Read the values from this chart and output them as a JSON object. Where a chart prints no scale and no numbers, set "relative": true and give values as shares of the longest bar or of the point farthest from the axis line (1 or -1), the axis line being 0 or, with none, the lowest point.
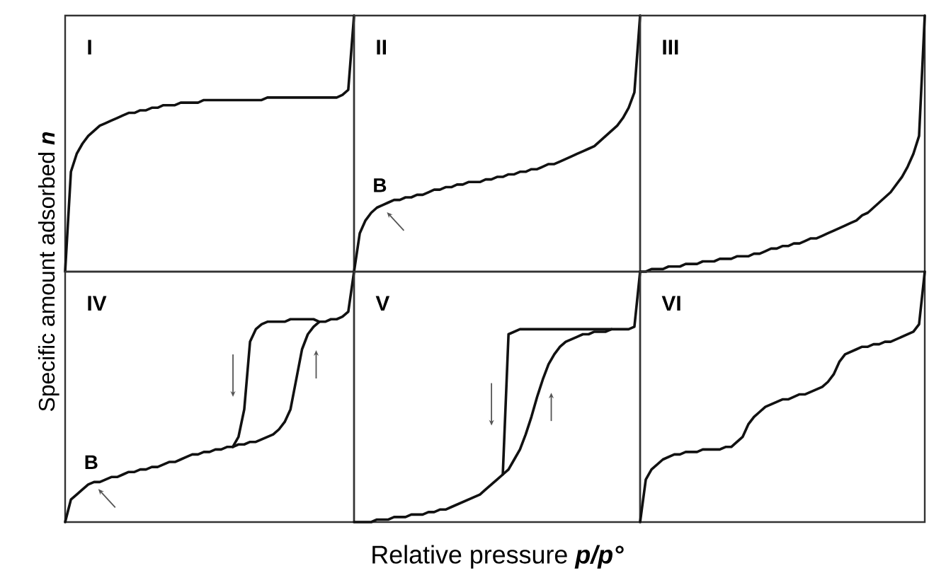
{
  "chart_data": [
    {
      "type": "line",
      "title": "I",
      "ylabel": "Specific amount adsorbed **n**",
      "relative": true,
      "color": "#111111",
      "categories": [
        null,
        null,
        null,
        null,
        null,
        null,
        null,
        null,
        null,
        null,
        null,
        null,
        null,
        null,
        null,
        null,
        null,
        null,
        null,
        null,
        null,
        null,
        null,
        null,
        null,
        null,
        null,
        null,
        null,
        null,
        null,
        null,
        null,
        null,
        null,
        null,
        null,
        null,
        null,
        null,
        null,
        null,
        null,
        null,
        null,
        null,
        null,
        null,
        null,
        null,
        null
      ],
      "values": [
        0,
        0.39,
        0.46,
        0.5,
        0.53,
        0.55,
        0.57,
        0.58,
        0.59,
        0.6,
        0.61,
        0.62,
        0.62,
        0.63,
        0.63,
        0.64,
        0.64,
        0.65,
        0.65,
        0.65,
        0.66,
        0.66,
        0.66,
        0.66,
        0.67,
        0.67,
        0.67,
        0.67,
        0.67,
        0.67,
        0.67,
        0.67,
        0.67,
        0.67,
        0.67,
        0.68,
        0.68,
        0.68,
        0.68,
        0.68,
        0.68,
        0.68,
        0.68,
        0.68,
        0.68,
        0.68,
        0.68,
        0.68,
        0.69,
        0.71,
        1
      ]
    },
    {
      "type": "line",
      "title": "II",
      "relative": true,
      "color": "#111111",
      "annotations": [
        {
          "text": "B",
          "y": 0.26
        }
      ],
      "categories": [
        null,
        null,
        null,
        null,
        null,
        null,
        null,
        null,
        null,
        null,
        null,
        null,
        null,
        null,
        null,
        null,
        null,
        null,
        null,
        null,
        null,
        null,
        null,
        null,
        null,
        null,
        null,
        null,
        null,
        null,
        null,
        null,
        null,
        null,
        null,
        null,
        null,
        null,
        null,
        null,
        null,
        null,
        null,
        null,
        null,
        null,
        null,
        null,
        null,
        null,
        null
      ],
      "values": [
        0,
        0.15,
        0.2,
        0.23,
        0.25,
        0.26,
        0.27,
        0.28,
        0.28,
        0.29,
        0.29,
        0.3,
        0.3,
        0.31,
        0.32,
        0.32,
        0.33,
        0.33,
        0.34,
        0.34,
        0.35,
        0.35,
        0.35,
        0.36,
        0.36,
        0.37,
        0.37,
        0.38,
        0.38,
        0.39,
        0.39,
        0.4,
        0.4,
        0.41,
        0.42,
        0.42,
        0.43,
        0.44,
        0.45,
        0.46,
        0.47,
        0.48,
        0.49,
        0.51,
        0.53,
        0.55,
        0.57,
        0.6,
        0.64,
        0.7,
        1
      ]
    },
    {
      "type": "line",
      "title": "III",
      "relative": true,
      "color": "#111111",
      "categories": [
        null,
        null,
        null,
        null,
        null,
        null,
        null,
        null,
        null,
        null,
        null,
        null,
        null,
        null,
        null,
        null,
        null,
        null,
        null,
        null,
        null,
        null,
        null,
        null,
        null,
        null,
        null,
        null,
        null,
        null,
        null,
        null,
        null,
        null,
        null,
        null,
        null,
        null,
        null,
        null,
        null,
        null,
        null,
        null,
        null,
        null,
        null,
        null,
        null,
        null,
        null
      ],
      "values": [
        0,
        0,
        0.01,
        0.01,
        0.01,
        0.02,
        0.02,
        0.02,
        0.03,
        0.03,
        0.03,
        0.04,
        0.04,
        0.04,
        0.05,
        0.05,
        0.05,
        0.06,
        0.06,
        0.06,
        0.07,
        0.07,
        0.08,
        0.09,
        0.09,
        0.1,
        0.1,
        0.11,
        0.11,
        0.12,
        0.13,
        0.13,
        0.14,
        0.15,
        0.16,
        0.17,
        0.18,
        0.19,
        0.2,
        0.22,
        0.23,
        0.25,
        0.27,
        0.29,
        0.31,
        0.34,
        0.37,
        0.41,
        0.46,
        0.53,
        1
      ]
    },
    {
      "type": "line",
      "title": "IV",
      "relative": true,
      "annotations": [
        {
          "text": "B",
          "y": 0.16
        }
      ],
      "categories": [
        null,
        null,
        null,
        null,
        null,
        null,
        null,
        null,
        null,
        null,
        null,
        null,
        null,
        null,
        null,
        null,
        null,
        null,
        null,
        null,
        null,
        null,
        null,
        null,
        null,
        null,
        null,
        null,
        null,
        null,
        null,
        null,
        null,
        null,
        null,
        null,
        null,
        null,
        null,
        null,
        null,
        null,
        null,
        null,
        null,
        null,
        null,
        null,
        null,
        null,
        null
      ],
      "series": [
        {
          "color": "#111111",
          "values": [
            0,
            0.09,
            0.11,
            0.13,
            0.15,
            0.16,
            0.16,
            0.17,
            0.18,
            0.18,
            0.19,
            0.2,
            0.2,
            0.21,
            0.21,
            0.22,
            0.22,
            0.23,
            0.24,
            0.24,
            0.25,
            0.26,
            0.27,
            0.27,
            0.28,
            0.28,
            0.29,
            0.29,
            0.3,
            0.3,
            0.31,
            0.31,
            0.32,
            0.32,
            0.33,
            0.34,
            0.35,
            0.37,
            0.4,
            0.45,
            0.57,
            0.69,
            0.75,
            0.78,
            0.8,
            0.8,
            0.81,
            0.81,
            0.82,
            0.84,
            1
          ]
        },
        {
          "color": "#111111",
          "values": [
            null,
            null,
            null,
            null,
            null,
            null,
            null,
            null,
            null,
            null,
            null,
            null,
            null,
            null,
            null,
            null,
            null,
            null,
            null,
            null,
            null,
            null,
            null,
            null,
            null,
            null,
            null,
            null,
            null,
            0.3,
            0.34,
            0.45,
            0.72,
            0.77,
            0.79,
            0.8,
            0.8,
            0.8,
            0.8,
            0.81,
            0.81,
            0.81,
            0.81,
            0.81,
            0.8,
            null,
            null,
            null,
            null,
            null,
            null
          ]
        }
      ]
    },
    {
      "type": "line",
      "title": "V",
      "xlabel": "Relative pressure **p/p°**",
      "relative": true,
      "categories": [
        null,
        null,
        null,
        null,
        null,
        null,
        null,
        null,
        null,
        null,
        null,
        null,
        null,
        null,
        null,
        null,
        null,
        null,
        null,
        null,
        null,
        null,
        null,
        null,
        null,
        null,
        null,
        null,
        null,
        null,
        null,
        null,
        null,
        null,
        null,
        null,
        null,
        null,
        null,
        null,
        null,
        null,
        null,
        null,
        null,
        null,
        null,
        null,
        null,
        null,
        null
      ],
      "series": [
        {
          "color": "#111111",
          "values": [
            0,
            0,
            0,
            0,
            0.01,
            0.01,
            0.01,
            0.02,
            0.02,
            0.02,
            0.03,
            0.03,
            0.03,
            0.04,
            0.04,
            0.05,
            0.05,
            0.06,
            0.07,
            0.08,
            0.09,
            0.1,
            0.11,
            0.13,
            0.15,
            0.17,
            0.19,
            0.21,
            0.25,
            0.29,
            0.35,
            0.42,
            0.5,
            0.57,
            0.63,
            0.67,
            0.7,
            0.72,
            0.73,
            0.74,
            0.75,
            0.75,
            0.76,
            0.76,
            0.76,
            0.77,
            0.77,
            0.77,
            0.77,
            0.78,
            1
          ]
        },
        {
          "color": "#111111",
          "values": [
            null,
            null,
            null,
            null,
            null,
            null,
            null,
            null,
            null,
            null,
            null,
            null,
            null,
            null,
            null,
            null,
            null,
            null,
            null,
            null,
            null,
            null,
            null,
            null,
            null,
            null,
            0.19,
            0.75,
            0.76,
            0.77,
            0.77,
            0.77,
            0.77,
            0.77,
            0.77,
            0.77,
            0.77,
            0.77,
            0.77,
            0.77,
            0.77,
            0.77,
            0.77,
            0.77,
            0.77,
            0.77,
            null,
            null,
            null,
            null,
            null
          ]
        }
      ]
    },
    {
      "type": "line",
      "title": "VI",
      "relative": true,
      "color": "#111111",
      "categories": [
        null,
        null,
        null,
        null,
        null,
        null,
        null,
        null,
        null,
        null,
        null,
        null,
        null,
        null,
        null,
        null,
        null,
        null,
        null,
        null,
        null,
        null,
        null,
        null,
        null,
        null,
        null,
        null,
        null,
        null,
        null,
        null,
        null,
        null,
        null,
        null,
        null,
        null,
        null,
        null,
        null,
        null,
        null,
        null,
        null,
        null,
        null,
        null,
        null,
        null,
        null
      ],
      "values": [
        0,
        0.17,
        0.21,
        0.23,
        0.25,
        0.26,
        0.27,
        0.27,
        0.28,
        0.28,
        0.28,
        0.29,
        0.29,
        0.29,
        0.29,
        0.3,
        0.3,
        0.32,
        0.34,
        0.39,
        0.42,
        0.44,
        0.46,
        0.47,
        0.48,
        0.49,
        0.49,
        0.5,
        0.51,
        0.51,
        0.52,
        0.53,
        0.54,
        0.56,
        0.59,
        0.64,
        0.67,
        0.68,
        0.69,
        0.7,
        0.7,
        0.71,
        0.71,
        0.72,
        0.72,
        0.73,
        0.74,
        0.75,
        0.76,
        0.79,
        1
      ]
    }
  ]
}
